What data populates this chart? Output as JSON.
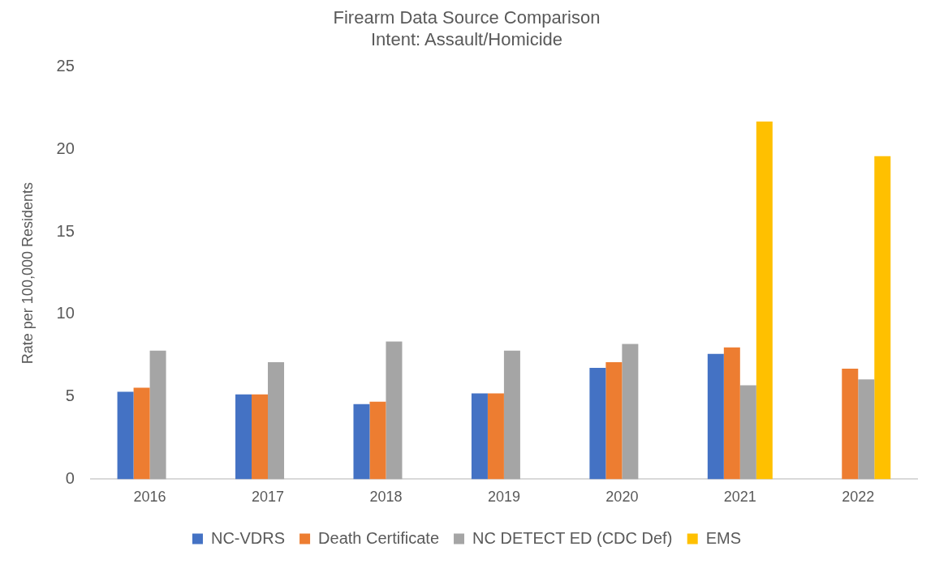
{
  "chart_data": {
    "type": "bar",
    "title": [
      "Firearm Data Source Comparison",
      "Intent: Assault/Homicide"
    ],
    "ylabel": "Rate per 100,000 Residents",
    "categories": [
      "2016",
      "2017",
      "2018",
      "2019",
      "2020",
      "2021",
      "2022"
    ],
    "series": [
      {
        "name": "NC-VDRS",
        "color": "#4472c4",
        "values": [
          5.3,
          5.15,
          4.55,
          5.2,
          6.75,
          7.6,
          null
        ]
      },
      {
        "name": "Death Certificate",
        "color": "#ed7d31",
        "values": [
          5.55,
          5.15,
          4.7,
          5.2,
          7.1,
          8.0,
          6.7
        ]
      },
      {
        "name": "NC DETECT ED (CDC Def)",
        "color": "#a5a5a5",
        "values": [
          7.8,
          7.1,
          8.35,
          7.8,
          8.2,
          5.7,
          6.05
        ]
      },
      {
        "name": "EMS",
        "color": "#ffc000",
        "values": [
          null,
          null,
          null,
          null,
          null,
          21.7,
          19.6
        ]
      }
    ],
    "ylim": [
      0,
      25
    ],
    "yticks": [
      0,
      5,
      10,
      15,
      20,
      25
    ],
    "grid": false,
    "legend": "bottom"
  }
}
